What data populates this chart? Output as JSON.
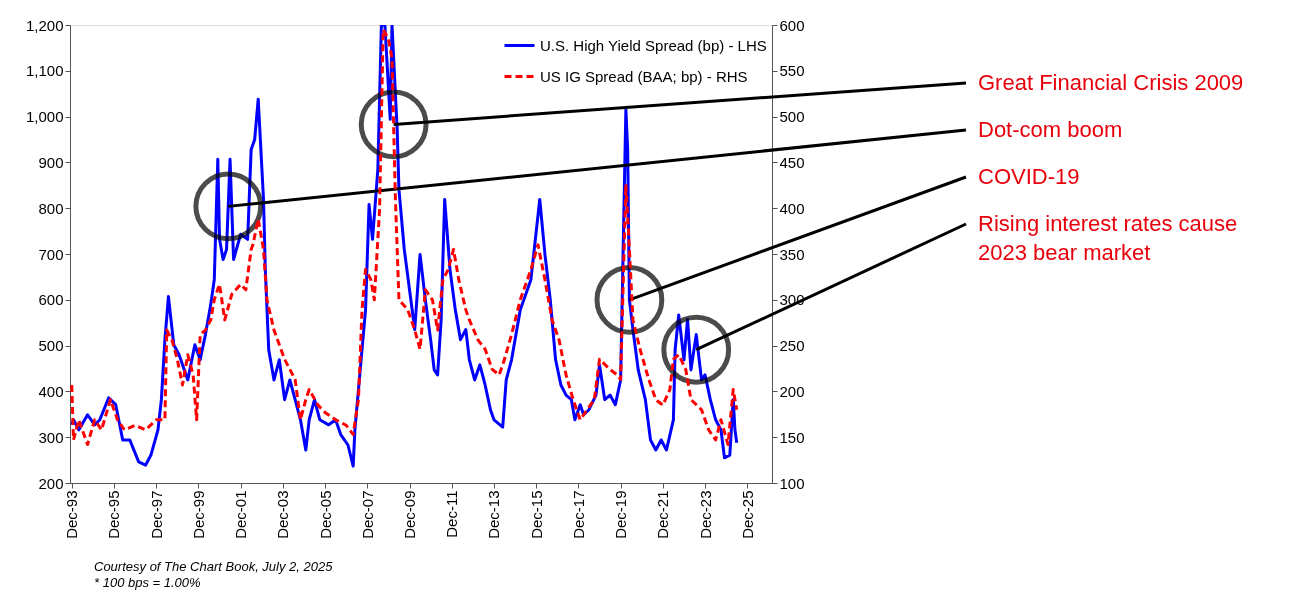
{
  "chart_data": {
    "type": "line",
    "xlim": [
      "1993-11",
      "2027-02"
    ],
    "xticks": [
      {
        "value": "1993-12",
        "label": "Dec-93"
      },
      {
        "value": "1995-12",
        "label": "Dec-95"
      },
      {
        "value": "1997-12",
        "label": "Dec-97"
      },
      {
        "value": "1999-12",
        "label": "Dec-99"
      },
      {
        "value": "2001-12",
        "label": "Dec-01"
      },
      {
        "value": "2003-12",
        "label": "Dec-03"
      },
      {
        "value": "2005-12",
        "label": "Dec-05"
      },
      {
        "value": "2007-12",
        "label": "Dec-07"
      },
      {
        "value": "2009-12",
        "label": "Dec-09"
      },
      {
        "value": "2011-12",
        "label": "Dec-11"
      },
      {
        "value": "2013-12",
        "label": "Dec-13"
      },
      {
        "value": "2015-12",
        "label": "Dec-15"
      },
      {
        "value": "2017-12",
        "label": "Dec-17"
      },
      {
        "value": "2019-12",
        "label": "Dec-19"
      },
      {
        "value": "2021-12",
        "label": "Dec-21"
      },
      {
        "value": "2023-12",
        "label": "Dec-23"
      },
      {
        "value": "2025-12",
        "label": "Dec-25"
      }
    ],
    "ylim": [
      200,
      1200
    ],
    "yticks": [
      200,
      300,
      400,
      500,
      600,
      700,
      800,
      900,
      {
        "value": 1000,
        "label": "1,000"
      },
      {
        "value": 1100,
        "label": "1,100"
      },
      {
        "value": 1200,
        "label": "1,200"
      }
    ],
    "y2lim": [
      100,
      600
    ],
    "y2ticks": [
      100,
      150,
      200,
      250,
      300,
      350,
      400,
      450,
      500,
      550,
      600
    ],
    "grid": false,
    "legend": "top right",
    "marker": "none",
    "series": [
      {
        "name": "U.S. High Yield Spread (bp) - LHS",
        "color": "#0000ff",
        "line_style": "solid",
        "x": [
          "1993-12",
          "1994-01",
          "1994-04",
          "1994-09",
          "1995-01",
          "1995-04",
          "1995-09",
          "1996-01",
          "1996-05",
          "1996-09",
          "1997-02",
          "1997-06",
          "1997-09",
          "1998-01",
          "1998-03",
          "1998-05",
          "1998-07",
          "1998-10",
          "1999-01",
          "1999-06",
          "1999-10",
          "2000-01",
          "2000-04",
          "2000-07",
          "2000-09",
          "2000-11",
          "2000-12",
          "2001-02",
          "2001-04",
          "2001-06",
          "2001-08",
          "2001-12",
          "2002-04",
          "2002-06",
          "2002-08",
          "2002-10",
          "2003-01",
          "2003-02",
          "2003-04",
          "2003-07",
          "2003-10",
          "2004-01",
          "2004-04",
          "2004-07",
          "2004-10",
          "2005-01",
          "2005-03",
          "2005-06",
          "2005-09",
          "2006-02",
          "2006-06",
          "2006-09",
          "2007-01",
          "2007-04",
          "2007-05",
          "2007-08",
          "2007-11",
          "2008-01",
          "2008-03",
          "2008-06",
          "2008-08",
          "2008-10",
          "2009-01",
          "2009-02",
          "2009-05",
          "2009-06",
          "2009-09",
          "2009-12",
          "2010-03",
          "2010-06",
          "2010-09",
          "2010-12",
          "2011-02",
          "2011-04",
          "2011-06",
          "2011-08",
          "2011-11",
          "2012-02",
          "2012-05",
          "2012-08",
          "2012-10",
          "2013-01",
          "2013-04",
          "2013-07",
          "2013-10",
          "2013-12",
          "2014-05",
          "2014-07",
          "2014-10",
          "2015-03",
          "2015-09",
          "2016-02",
          "2016-05",
          "2016-08",
          "2016-11",
          "2017-02",
          "2017-05",
          "2017-08",
          "2017-10",
          "2018-01",
          "2018-03",
          "2018-06",
          "2018-10",
          "2018-12",
          "2019-03",
          "2019-06",
          "2019-09",
          "2019-12",
          "2020-03",
          "2020-04",
          "2020-05",
          "2020-07",
          "2020-10",
          "2021-02",
          "2021-05",
          "2021-08",
          "2021-11",
          "2022-02",
          "2022-06",
          "2022-07",
          "2022-09",
          "2022-12",
          "2023-02",
          "2023-04",
          "2023-07",
          "2023-10",
          "2023-12",
          "2024-03",
          "2024-06",
          "2024-09",
          "2024-11",
          "2025-02",
          "2025-04",
          "2025-05",
          "2025-06"
        ],
        "values": [
          327,
          338,
          316,
          349,
          327,
          338,
          386,
          371,
          294,
          294,
          246,
          239,
          261,
          316,
          382,
          513,
          607,
          502,
          480,
          425,
          502,
          469,
          524,
          589,
          644,
          907,
          732,
          688,
          710,
          907,
          688,
          743,
          732,
          928,
          950,
          1038,
          819,
          666,
          491,
          425,
          469,
          382,
          425,
          382,
          338,
          272,
          338,
          382,
          338,
          327,
          338,
          305,
          283,
          237,
          316,
          447,
          578,
          808,
          732,
          885,
          1200,
          1200,
          994,
          1200,
          972,
          841,
          710,
          622,
          535,
          699,
          600,
          513,
          447,
          436,
          557,
          819,
          666,
          578,
          513,
          535,
          469,
          425,
          458,
          414,
          360,
          338,
          322,
          425,
          469,
          578,
          644,
          819,
          699,
          600,
          469,
          414,
          392,
          382,
          338,
          371,
          349,
          360,
          392,
          458,
          382,
          392,
          371,
          425,
          1016,
          928,
          600,
          535,
          447,
          382,
          294,
          272,
          294,
          272,
          338,
          491,
          567,
          469,
          557,
          447,
          524,
          425,
          436,
          382,
          338,
          316,
          255,
          261,
          382,
          316,
          288
        ]
      },
      {
        "name": "US IG Spread (BAA; bp) - RHS",
        "color": "#ff0000",
        "line_style": "dashed",
        "axis": "y2",
        "x": [
          "1993-12",
          "1994-01",
          "1994-04",
          "1994-09",
          "1995-01",
          "1995-05",
          "1995-10",
          "1996-02",
          "1996-06",
          "1996-12",
          "1997-06",
          "1997-12",
          "1998-03",
          "1998-05",
          "1998-06",
          "1998-09",
          "1998-12",
          "1999-03",
          "1999-06",
          "1999-09",
          "1999-11",
          "2000-01",
          "2000-04",
          "2000-07",
          "2000-09",
          "2000-12",
          "2001-03",
          "2001-07",
          "2001-12",
          "2002-03",
          "2002-06",
          "2002-07",
          "2002-10",
          "2003-01",
          "2003-03",
          "2003-07",
          "2004-01",
          "2004-07",
          "2004-10",
          "2005-01",
          "2005-03",
          "2005-08",
          "2005-12",
          "2006-06",
          "2006-12",
          "2007-04",
          "2007-07",
          "2007-09",
          "2007-11",
          "2008-02",
          "2008-04",
          "2008-07",
          "2008-09",
          "2008-12",
          "2009-02",
          "2009-04",
          "2009-06",
          "2009-11",
          "2010-03",
          "2010-06",
          "2010-09",
          "2011-01",
          "2011-04",
          "2011-07",
          "2011-10",
          "2012-01",
          "2012-04",
          "2012-08",
          "2012-10",
          "2013-03",
          "2013-07",
          "2013-11",
          "2014-03",
          "2014-06",
          "2014-10",
          "2015-03",
          "2015-09",
          "2016-01",
          "2016-05",
          "2016-09",
          "2017-01",
          "2017-05",
          "2017-09",
          "2018-01",
          "2018-05",
          "2018-09",
          "2018-12",
          "2019-06",
          "2019-10",
          "2019-12",
          "2020-03",
          "2020-05",
          "2020-07",
          "2020-11",
          "2021-04",
          "2021-08",
          "2021-12",
          "2022-04",
          "2022-06",
          "2022-09",
          "2023-01",
          "2023-04",
          "2023-10",
          "2024-02",
          "2024-06",
          "2024-09",
          "2025-01",
          "2025-04",
          "2025-06"
        ],
        "values": [
          207,
          147,
          169,
          142,
          169,
          158,
          191,
          169,
          158,
          163,
          158,
          169,
          169,
          169,
          267,
          256,
          235,
          207,
          240,
          218,
          169,
          262,
          267,
          278,
          300,
          317,
          278,
          306,
          317,
          311,
          355,
          360,
          388,
          355,
          300,
          267,
          235,
          213,
          169,
          191,
          202,
          185,
          177,
          169,
          163,
          153,
          191,
          289,
          333,
          322,
          300,
          399,
          595,
          585,
          563,
          410,
          300,
          289,
          267,
          246,
          311,
          300,
          267,
          322,
          333,
          355,
          322,
          289,
          278,
          256,
          246,
          224,
          218,
          235,
          262,
          300,
          333,
          360,
          322,
          278,
          256,
          218,
          191,
          169,
          180,
          191,
          235,
          224,
          218,
          213,
          426,
          355,
          278,
          246,
          213,
          191,
          185,
          202,
          235,
          240,
          224,
          191,
          180,
          158,
          147,
          169,
          142,
          202,
          180
        ]
      }
    ],
    "annotations": [
      {
        "text": "Great Financial Crisis 2009",
        "x": "2009-03",
        "y": 983
      },
      {
        "text": "Dot-com boom",
        "x": "2001-05",
        "y": 804
      },
      {
        "text": "COVID-19",
        "x": "2020-05",
        "y": 600
      },
      {
        "text": "Rising interest rates cause 2023 bear market",
        "x": "2023-07",
        "y": 491
      },
      "Courtesy of The Chart Book, July 2, 2025",
      "* 100 bps = 1.00%"
    ]
  }
}
